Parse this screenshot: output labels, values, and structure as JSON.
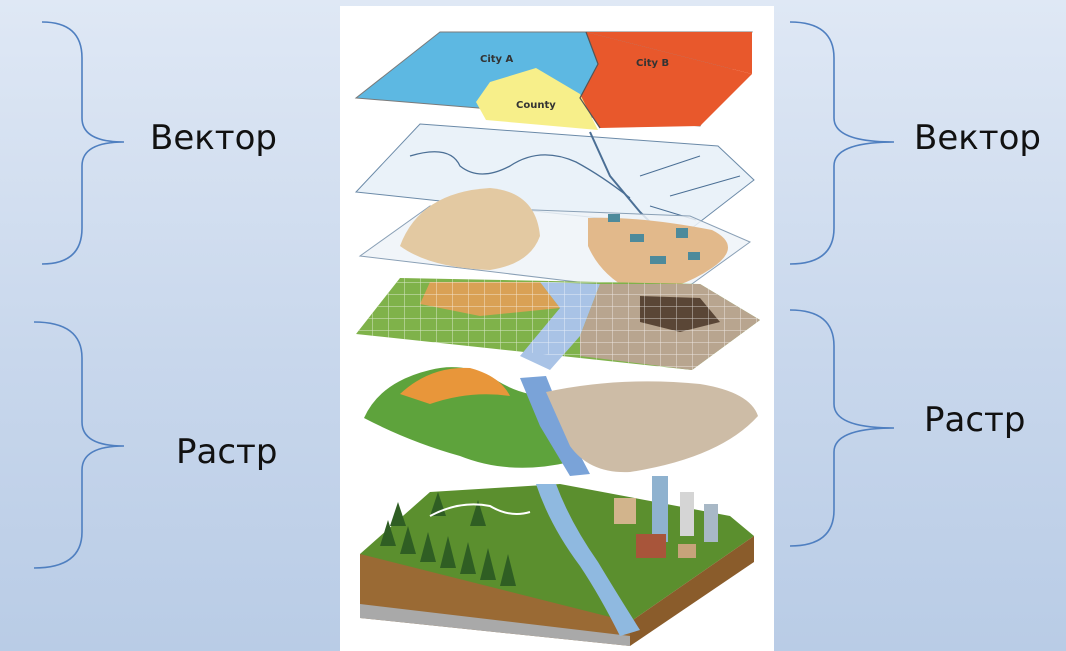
{
  "labels": {
    "left_vector": "Вектор",
    "left_raster": "Растр",
    "right_vector": "Вектор",
    "right_raster": "Растр"
  },
  "map": {
    "city_a": "City A",
    "city_b": "City B",
    "county": "County"
  },
  "colors": {
    "brace": "#4f7fc0",
    "city_a": "#5db8e2",
    "city_b": "#e8582c",
    "county": "#f7ef8a"
  },
  "icons": {
    "layer_stack": "gis-layer-stack-illustration"
  }
}
